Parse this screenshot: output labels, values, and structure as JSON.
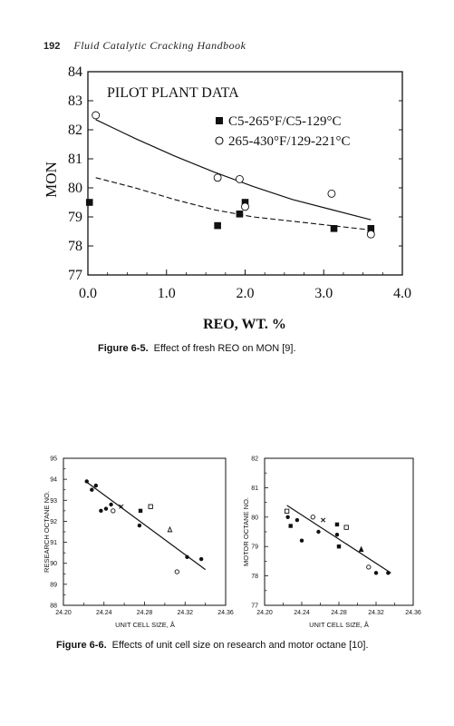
{
  "header": {
    "page_number": "192",
    "book_title": "Fluid Catalytic Cracking Handbook"
  },
  "fig65": {
    "caption_label": "Figure 6-5.",
    "caption_text": "Effect of fresh REO on MON [9].",
    "chart_data": {
      "type": "scatter",
      "title": "PILOT PLANT DATA",
      "xlabel": "REO, WT. %",
      "ylabel": "MON",
      "xlim": [
        0,
        4
      ],
      "ylim": [
        77,
        84
      ],
      "xticks": [
        0,
        1,
        2,
        3,
        4
      ],
      "xtick_labels": [
        "0.0",
        "1.0",
        "2.0",
        "3.0",
        "4.0"
      ],
      "yticks": [
        77,
        78,
        79,
        80,
        81,
        82,
        83,
        84
      ],
      "ytick_labels": [
        "77",
        "78",
        "79",
        "80",
        "81",
        "82",
        "83",
        "84"
      ],
      "legend_position": "top-right",
      "series": [
        {
          "name": "C5-265°F/C5-129°C",
          "marker": "filled-square",
          "points": [
            [
              0.02,
              79.5
            ],
            [
              1.65,
              78.7
            ],
            [
              1.93,
              79.1
            ],
            [
              2.0,
              79.5
            ],
            [
              3.13,
              78.6
            ],
            [
              3.6,
              78.6
            ]
          ],
          "trend": [
            [
              0.1,
              80.35
            ],
            [
              0.6,
              80.0
            ],
            [
              1.1,
              79.6
            ],
            [
              1.6,
              79.25
            ],
            [
              2.1,
              79.0
            ],
            [
              2.6,
              78.85
            ],
            [
              3.1,
              78.7
            ],
            [
              3.6,
              78.55
            ]
          ],
          "trend_style": "dashed"
        },
        {
          "name": "265-430°F/129-221°C",
          "marker": "open-circle",
          "points": [
            [
              0.1,
              82.5
            ],
            [
              1.65,
              80.35
            ],
            [
              1.93,
              80.3
            ],
            [
              2.0,
              79.35
            ],
            [
              3.1,
              79.8
            ],
            [
              3.6,
              78.4
            ]
          ],
          "trend": [
            [
              0.1,
              82.35
            ],
            [
              0.6,
              81.7
            ],
            [
              1.1,
              81.1
            ],
            [
              1.6,
              80.55
            ],
            [
              2.1,
              80.05
            ],
            [
              2.6,
              79.6
            ],
            [
              3.1,
              79.25
            ],
            [
              3.6,
              78.9
            ]
          ],
          "trend_style": "solid"
        }
      ]
    }
  },
  "fig66": {
    "caption_label": "Figure 6-6.",
    "caption_text": "Effects of unit cell size on research and motor octane [10].",
    "chart_data": [
      {
        "type": "scatter",
        "xlabel": "UNIT CELL SIZE, Å",
        "ylabel": "RESEARCH OCTANE NO.",
        "xlim": [
          24.2,
          24.36
        ],
        "ylim": [
          88,
          95
        ],
        "xticks": [
          24.2,
          24.24,
          24.28,
          24.32,
          24.36
        ],
        "xtick_labels": [
          "24.20",
          "24.24",
          "24.28",
          "24.32",
          "24.36"
        ],
        "yticks": [
          88,
          89,
          90,
          91,
          92,
          93,
          94,
          95
        ],
        "ytick_labels": [
          "88",
          "89",
          "90",
          "91",
          "92",
          "93",
          "94",
          "95"
        ],
        "series": [
          {
            "marker": "filled-circle",
            "points": [
              [
                24.223,
                93.9
              ],
              [
                24.228,
                93.5
              ],
              [
                24.232,
                93.7
              ],
              [
                24.237,
                92.5
              ],
              [
                24.242,
                92.6
              ],
              [
                24.247,
                92.8
              ],
              [
                24.275,
                91.8
              ],
              [
                24.322,
                90.3
              ],
              [
                24.336,
                90.2
              ]
            ]
          },
          {
            "marker": "filled-square",
            "points": [
              [
                24.276,
                92.5
              ]
            ]
          },
          {
            "marker": "cross",
            "points": [
              [
                24.257,
                92.7
              ]
            ]
          },
          {
            "marker": "open-circle",
            "points": [
              [
                24.249,
                92.5
              ],
              [
                24.312,
                89.6
              ]
            ]
          },
          {
            "marker": "open-square",
            "points": [
              [
                24.286,
                92.7
              ]
            ]
          },
          {
            "marker": "open-triangle",
            "points": [
              [
                24.305,
                91.6
              ]
            ]
          }
        ],
        "trend": [
          [
            24.222,
            93.9
          ],
          [
            24.34,
            89.7
          ]
        ]
      },
      {
        "type": "scatter",
        "xlabel": "UNIT CELL SIZE, Å",
        "ylabel": "MOTOR OCTANE NO.",
        "xlim": [
          24.2,
          24.36
        ],
        "ylim": [
          77,
          82
        ],
        "xticks": [
          24.2,
          24.24,
          24.28,
          24.32,
          24.36
        ],
        "xtick_labels": [
          "24.20",
          "24.24",
          "24.28",
          "24.32",
          "24.36"
        ],
        "yticks": [
          77,
          78,
          79,
          80,
          81,
          82
        ],
        "ytick_labels": [
          "77",
          "78",
          "79",
          "80",
          "81",
          "82"
        ],
        "series": [
          {
            "marker": "filled-circle",
            "points": [
              [
                24.225,
                80.0
              ],
              [
                24.235,
                79.9
              ],
              [
                24.24,
                79.2
              ],
              [
                24.258,
                79.5
              ],
              [
                24.278,
                79.4
              ],
              [
                24.32,
                78.1
              ],
              [
                24.333,
                78.1
              ]
            ]
          },
          {
            "marker": "filled-square",
            "points": [
              [
                24.228,
                79.7
              ],
              [
                24.278,
                79.75
              ],
              [
                24.28,
                79.0
              ]
            ]
          },
          {
            "marker": "cross",
            "points": [
              [
                24.263,
                79.9
              ]
            ]
          },
          {
            "marker": "open-circle",
            "points": [
              [
                24.252,
                80.0
              ],
              [
                24.312,
                78.3
              ]
            ]
          },
          {
            "marker": "open-square",
            "points": [
              [
                24.224,
                80.2
              ],
              [
                24.288,
                79.65
              ]
            ]
          },
          {
            "marker": "filled-triangle",
            "points": [
              [
                24.304,
                78.9
              ]
            ]
          }
        ],
        "trend": [
          [
            24.224,
            80.4
          ],
          [
            24.336,
            78.1
          ]
        ]
      }
    ]
  }
}
